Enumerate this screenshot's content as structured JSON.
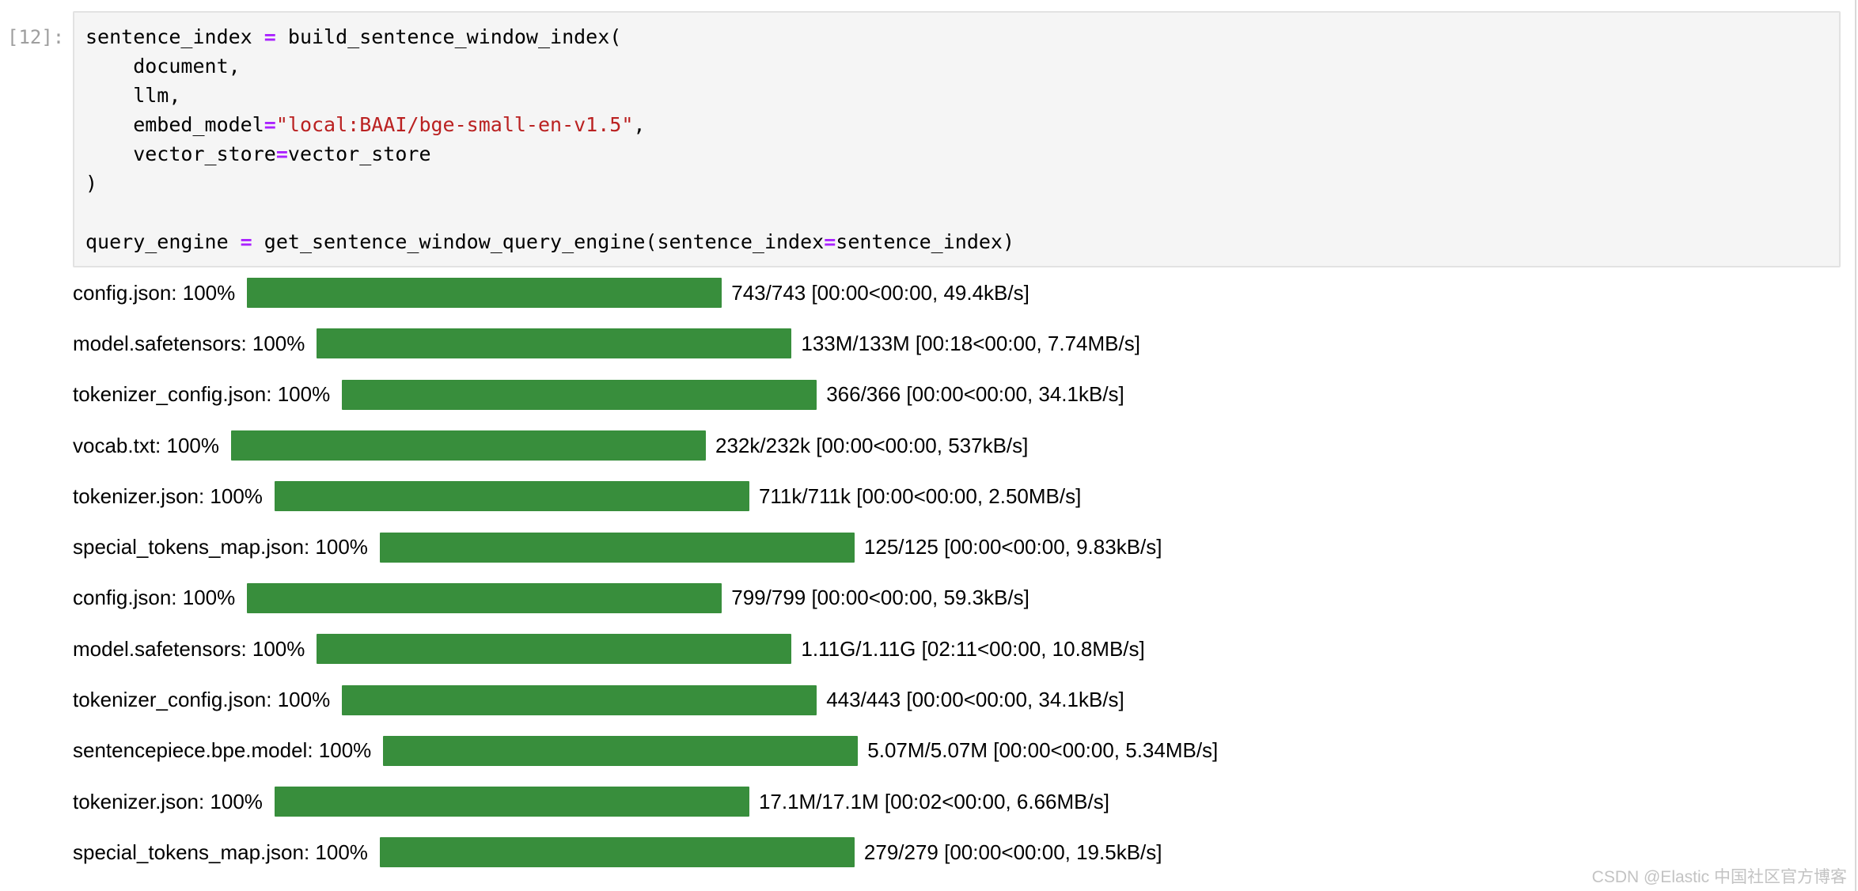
{
  "colors": {
    "cell_bg": "#f5f5f5",
    "cell_border": "#e2e2e2",
    "prompt": "#9e9e9e",
    "operator": "#aa22ff",
    "string": "#ba2121",
    "bar_green": "#388e3c",
    "watermark": "#c3c3c3",
    "divider": "#d8d8d8"
  },
  "cell": {
    "prompt": "[12]:",
    "lines": [
      [
        {
          "c": "plain",
          "t": "sentence_index "
        },
        {
          "c": "op",
          "t": "="
        },
        {
          "c": "plain",
          "t": " build_sentence_window_index("
        }
      ],
      [
        {
          "c": "plain",
          "t": "    document,"
        }
      ],
      [
        {
          "c": "plain",
          "t": "    llm,"
        }
      ],
      [
        {
          "c": "plain",
          "t": "    embed_model"
        },
        {
          "c": "op",
          "t": "="
        },
        {
          "c": "str",
          "t": "\"local:BAAI/bge-small-en-v1.5\""
        },
        {
          "c": "plain",
          "t": ","
        }
      ],
      [
        {
          "c": "plain",
          "t": "    vector_store"
        },
        {
          "c": "op",
          "t": "="
        },
        {
          "c": "plain",
          "t": "vector_store"
        }
      ],
      [
        {
          "c": "plain",
          "t": ")"
        }
      ],
      [
        {
          "c": "plain",
          "t": ""
        }
      ],
      [
        {
          "c": "plain",
          "t": "query_engine "
        },
        {
          "c": "op",
          "t": "="
        },
        {
          "c": "plain",
          "t": " get_sentence_window_query_engine(sentence_index"
        },
        {
          "c": "op",
          "t": "="
        },
        {
          "c": "plain",
          "t": "sentence_index)"
        }
      ]
    ]
  },
  "progress": {
    "percent_all": "100%",
    "rows": [
      {
        "label": "config.json: 100%",
        "stats": "743/743 [00:00<00:00, 49.4kB/s]"
      },
      {
        "label": "model.safetensors: 100%",
        "stats": "133M/133M [00:18<00:00, 7.74MB/s]"
      },
      {
        "label": "tokenizer_config.json: 100%",
        "stats": "366/366 [00:00<00:00, 34.1kB/s]"
      },
      {
        "label": "vocab.txt: 100%",
        "stats": "232k/232k [00:00<00:00, 537kB/s]"
      },
      {
        "label": "tokenizer.json: 100%",
        "stats": "711k/711k [00:00<00:00, 2.50MB/s]"
      },
      {
        "label": "special_tokens_map.json: 100%",
        "stats": "125/125 [00:00<00:00, 9.83kB/s]"
      },
      {
        "label": "config.json: 100%",
        "stats": "799/799 [00:00<00:00, 59.3kB/s]"
      },
      {
        "label": "model.safetensors: 100%",
        "stats": "1.11G/1.11G [02:11<00:00, 10.8MB/s]"
      },
      {
        "label": "tokenizer_config.json: 100%",
        "stats": "443/443 [00:00<00:00, 34.1kB/s]"
      },
      {
        "label": "sentencepiece.bpe.model: 100%",
        "stats": "5.07M/5.07M [00:00<00:00, 5.34MB/s]"
      },
      {
        "label": "tokenizer.json: 100%",
        "stats": "17.1M/17.1M [00:02<00:00, 6.66MB/s]"
      },
      {
        "label": "special_tokens_map.json: 100%",
        "stats": "279/279 [00:00<00:00, 19.5kB/s]"
      }
    ]
  },
  "watermark": "CSDN @Elastic 中国社区官方博客"
}
